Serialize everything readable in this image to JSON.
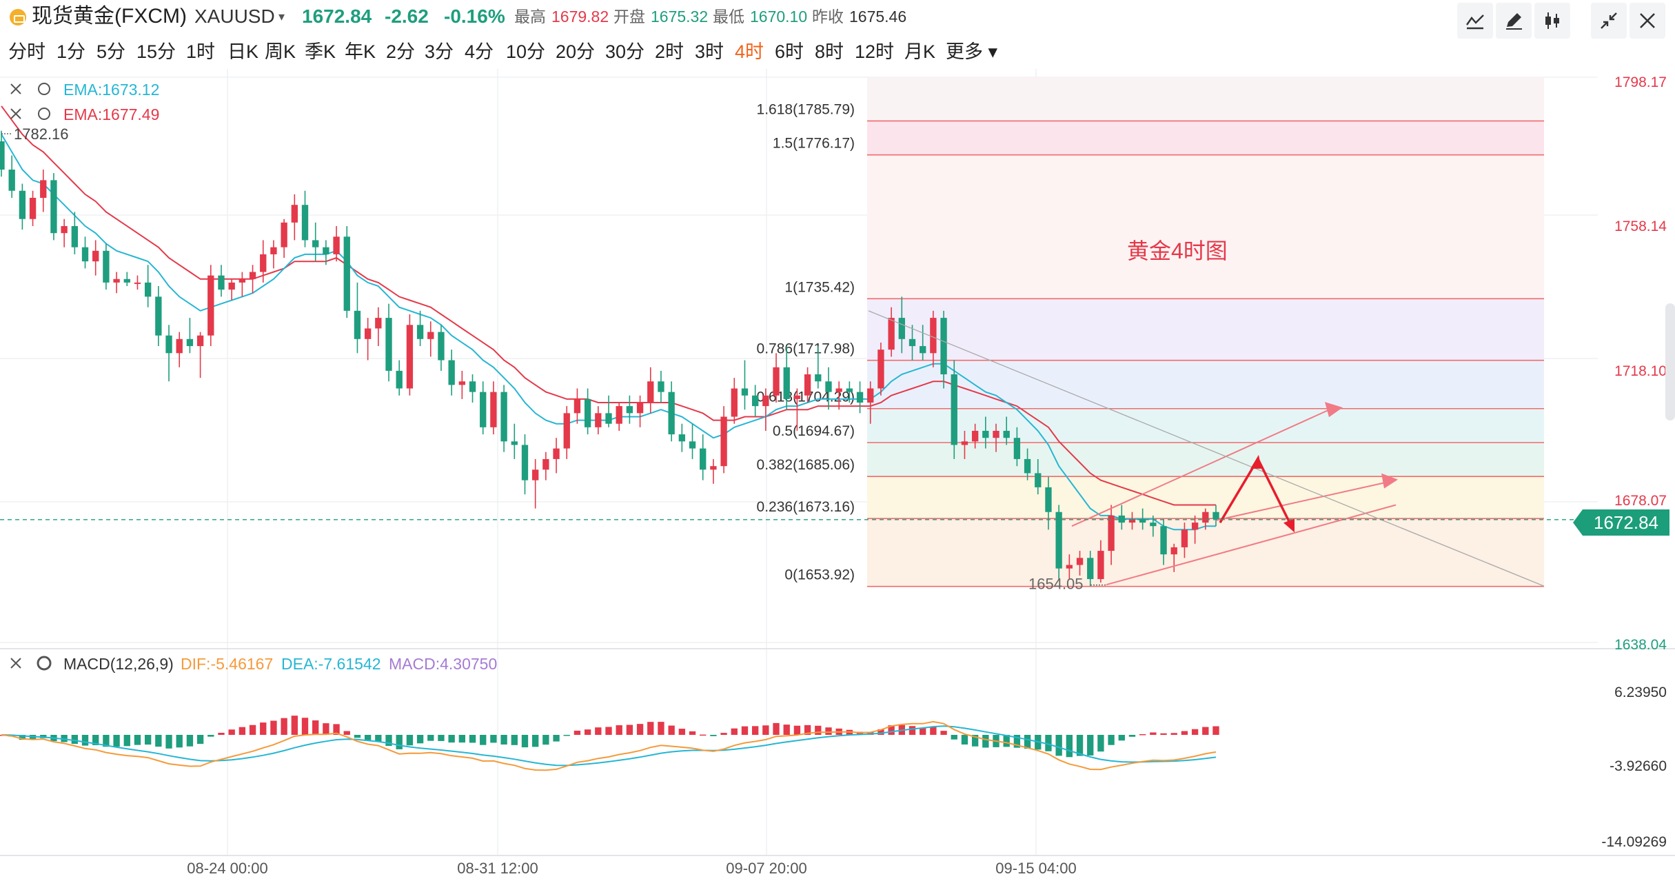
{
  "header": {
    "name": "现货黄金(FXCM)",
    "code": "XAUUSD",
    "price": "1672.84",
    "change": "-2.62",
    "change_pct": "-0.16%",
    "high_label": "最高",
    "high": "1679.82",
    "open_label": "开盘",
    "open": "1675.32",
    "low_label": "最低",
    "low": "1670.10",
    "prev_label": "昨收",
    "prev": "1675.46"
  },
  "periods": [
    "分时",
    "1分",
    "5分",
    "15分",
    "1时",
    "日K",
    "周K",
    "季K",
    "年K",
    "2分",
    "3分",
    "4分",
    "10分",
    "20分",
    "30分",
    "2时",
    "3时",
    "4时",
    "6时",
    "8时",
    "12时",
    "月K",
    "更多"
  ],
  "active_period": "4时",
  "toolbar": [
    "line-tool-icon",
    "pencil-icon",
    "candle-type-icon",
    "collapse-icon",
    "close-icon"
  ],
  "colors": {
    "up": "#e4394a",
    "down": "#1e9e7e",
    "ema1": "#26b6d4",
    "ema2": "#e4394a",
    "dif": "#f59a3a",
    "dea": "#26b6d4",
    "macd": "#a67bd4",
    "accent": "#f2631a"
  },
  "chart_data": {
    "type": "candlestick",
    "title": "黄金4时图",
    "ema_labels": [
      "EMA:1673.12",
      "EMA:1677.49"
    ],
    "current_price": "1672.84",
    "price_axis": {
      "ticks": [
        "1798.17",
        "1758.14",
        "1718.10",
        "1678.07",
        "1638.04"
      ],
      "range": [
        1638.04,
        1798.17
      ]
    },
    "x_axis": {
      "ticks": [
        "08-24 00:00",
        "08-31 12:00",
        "09-07 20:00",
        "09-15 04:00"
      ]
    },
    "high_label": "1782.16",
    "low_label": "1654.05",
    "fib_levels": [
      {
        "label": "1.618(1785.79)",
        "value": 1785.79
      },
      {
        "label": "1.5(1776.17)",
        "value": 1776.17
      },
      {
        "label": "1(1735.42)",
        "value": 1735.42
      },
      {
        "label": "0.786(1717.98)",
        "value": 1717.98
      },
      {
        "label": "0.618(1704.29)",
        "value": 1704.29
      },
      {
        "label": "0.5(1694.67)",
        "value": 1694.67
      },
      {
        "label": "0.382(1685.06)",
        "value": 1685.06
      },
      {
        "label": "0.236(1673.16)",
        "value": 1673.16
      },
      {
        "label": "0(1653.92)",
        "value": 1653.92
      }
    ],
    "candles": [
      [
        1780,
        1783,
        1770,
        1772
      ],
      [
        1772,
        1776,
        1764,
        1766
      ],
      [
        1766,
        1768,
        1755,
        1758
      ],
      [
        1758,
        1766,
        1756,
        1764
      ],
      [
        1764,
        1772,
        1760,
        1769
      ],
      [
        1769,
        1771,
        1752,
        1754
      ],
      [
        1754,
        1758,
        1750,
        1756
      ],
      [
        1756,
        1760,
        1748,
        1750
      ],
      [
        1750,
        1753,
        1744,
        1746
      ],
      [
        1746,
        1752,
        1742,
        1749
      ],
      [
        1749,
        1751,
        1738,
        1740
      ],
      [
        1740,
        1743,
        1737,
        1741
      ],
      [
        1741,
        1743,
        1739,
        1740
      ],
      [
        1740,
        1742,
        1738,
        1740
      ],
      [
        1740,
        1745,
        1733,
        1736
      ],
      [
        1736,
        1739,
        1722,
        1725
      ],
      [
        1725,
        1728,
        1712,
        1720
      ],
      [
        1720,
        1726,
        1716,
        1724
      ],
      [
        1724,
        1730,
        1720,
        1722
      ],
      [
        1722,
        1726,
        1713,
        1725
      ],
      [
        1725,
        1745,
        1722,
        1742
      ],
      [
        1742,
        1745,
        1736,
        1738
      ],
      [
        1738,
        1741,
        1735,
        1740
      ],
      [
        1740,
        1743,
        1736,
        1741
      ],
      [
        1741,
        1745,
        1737,
        1743
      ],
      [
        1743,
        1752,
        1740,
        1748
      ],
      [
        1748,
        1752,
        1744,
        1750
      ],
      [
        1750,
        1758,
        1747,
        1757
      ],
      [
        1757,
        1765,
        1752,
        1762
      ],
      [
        1762,
        1766,
        1750,
        1752
      ],
      [
        1752,
        1757,
        1746,
        1750
      ],
      [
        1750,
        1752,
        1745,
        1748
      ],
      [
        1748,
        1756,
        1746,
        1753
      ],
      [
        1753,
        1756,
        1730,
        1732
      ],
      [
        1732,
        1740,
        1720,
        1724
      ],
      [
        1724,
        1730,
        1718,
        1727
      ],
      [
        1727,
        1733,
        1722,
        1730
      ],
      [
        1730,
        1734,
        1712,
        1715
      ],
      [
        1715,
        1718,
        1708,
        1710
      ],
      [
        1710,
        1731,
        1708,
        1728
      ],
      [
        1728,
        1732,
        1722,
        1724
      ],
      [
        1724,
        1729,
        1719,
        1726
      ],
      [
        1726,
        1728,
        1715,
        1718
      ],
      [
        1718,
        1721,
        1708,
        1711
      ],
      [
        1711,
        1715,
        1707,
        1712
      ],
      [
        1712,
        1714,
        1706,
        1709
      ],
      [
        1709,
        1712,
        1697,
        1699
      ],
      [
        1699,
        1712,
        1697,
        1709
      ],
      [
        1709,
        1711,
        1692,
        1695
      ],
      [
        1695,
        1700,
        1690,
        1694
      ],
      [
        1694,
        1697,
        1680,
        1684
      ],
      [
        1684,
        1690,
        1676,
        1687
      ],
      [
        1687,
        1692,
        1684,
        1690
      ],
      [
        1690,
        1696,
        1686,
        1693
      ],
      [
        1693,
        1705,
        1690,
        1703
      ],
      [
        1703,
        1710,
        1700,
        1707
      ],
      [
        1707,
        1710,
        1697,
        1699
      ],
      [
        1699,
        1705,
        1697,
        1703
      ],
      [
        1703,
        1708,
        1699,
        1700
      ],
      [
        1700,
        1706,
        1698,
        1705
      ],
      [
        1705,
        1708,
        1700,
        1703
      ],
      [
        1703,
        1708,
        1699,
        1706
      ],
      [
        1706,
        1716,
        1703,
        1712
      ],
      [
        1712,
        1715,
        1706,
        1709
      ],
      [
        1709,
        1712,
        1695,
        1697
      ],
      [
        1697,
        1700,
        1692,
        1695
      ],
      [
        1695,
        1700,
        1690,
        1693
      ],
      [
        1693,
        1697,
        1684,
        1687
      ],
      [
        1687,
        1690,
        1683,
        1688
      ],
      [
        1688,
        1705,
        1686,
        1702
      ],
      [
        1702,
        1713,
        1700,
        1710
      ],
      [
        1710,
        1718,
        1704,
        1708
      ],
      [
        1708,
        1711,
        1702,
        1705
      ],
      [
        1705,
        1710,
        1698,
        1708
      ],
      [
        1708,
        1720,
        1706,
        1716
      ],
      [
        1716,
        1722,
        1704,
        1707
      ],
      [
        1707,
        1710,
        1698,
        1708
      ],
      [
        1708,
        1716,
        1706,
        1714
      ],
      [
        1714,
        1722,
        1710,
        1712
      ],
      [
        1712,
        1716,
        1704,
        1709
      ],
      [
        1709,
        1712,
        1704,
        1710
      ],
      [
        1710,
        1712,
        1706,
        1709
      ],
      [
        1709,
        1712,
        1703,
        1706
      ],
      [
        1706,
        1712,
        1700,
        1710
      ],
      [
        1710,
        1723,
        1708,
        1721
      ],
      [
        1721,
        1733,
        1719,
        1730
      ],
      [
        1730,
        1736,
        1720,
        1724
      ],
      [
        1724,
        1728,
        1718,
        1722
      ],
      [
        1722,
        1728,
        1718,
        1720
      ],
      [
        1720,
        1732,
        1716,
        1730
      ],
      [
        1730,
        1732,
        1710,
        1714
      ],
      [
        1714,
        1718,
        1690,
        1694
      ],
      [
        1694,
        1698,
        1690,
        1695
      ],
      [
        1695,
        1700,
        1693,
        1698
      ],
      [
        1698,
        1702,
        1693,
        1696
      ],
      [
        1696,
        1700,
        1692,
        1698
      ],
      [
        1698,
        1702,
        1694,
        1696
      ],
      [
        1696,
        1699,
        1688,
        1690
      ],
      [
        1690,
        1693,
        1684,
        1686
      ],
      [
        1686,
        1690,
        1680,
        1682
      ],
      [
        1682,
        1685,
        1670,
        1675
      ],
      [
        1675,
        1677,
        1656,
        1659
      ],
      [
        1659,
        1663,
        1656,
        1660
      ],
      [
        1660,
        1664,
        1657,
        1662
      ],
      [
        1662,
        1664,
        1654,
        1656
      ],
      [
        1656,
        1667,
        1655,
        1664
      ],
      [
        1664,
        1677,
        1660,
        1674
      ],
      [
        1674,
        1677,
        1670,
        1672
      ],
      [
        1672,
        1675,
        1670,
        1673
      ],
      [
        1673,
        1676,
        1670,
        1672
      ],
      [
        1672,
        1674,
        1668,
        1671
      ],
      [
        1671,
        1673,
        1660,
        1663
      ],
      [
        1663,
        1666,
        1658,
        1665
      ],
      [
        1665,
        1672,
        1662,
        1670
      ],
      [
        1670,
        1674,
        1666,
        1672
      ],
      [
        1672,
        1676,
        1670,
        1675
      ],
      [
        1675,
        1677,
        1671,
        1673
      ]
    ],
    "ema1": [
      1782,
      1777,
      1772,
      1769,
      1768,
      1765,
      1762,
      1759,
      1756,
      1754,
      1751,
      1749,
      1748,
      1747,
      1746,
      1743,
      1739,
      1736,
      1734,
      1732,
      1733,
      1734,
      1735,
      1736,
      1737,
      1739,
      1741,
      1744,
      1747,
      1748,
      1748,
      1748,
      1749,
      1746,
      1742,
      1740,
      1739,
      1736,
      1733,
      1732,
      1731,
      1730,
      1728,
      1725,
      1723,
      1721,
      1718,
      1716,
      1713,
      1710,
      1706,
      1703,
      1701,
      1700,
      1700,
      1701,
      1701,
      1701,
      1701,
      1702,
      1702,
      1702,
      1703,
      1704,
      1703,
      1702,
      1700,
      1698,
      1696,
      1697,
      1699,
      1700,
      1701,
      1702,
      1704,
      1705,
      1705,
      1706,
      1707,
      1707,
      1707,
      1707,
      1707,
      1707,
      1709,
      1712,
      1714,
      1715,
      1716,
      1717,
      1717,
      1715,
      1713,
      1711,
      1709,
      1708,
      1706,
      1704,
      1701,
      1698,
      1694,
      1688,
      1684,
      1680,
      1676,
      1674,
      1674,
      1673,
      1673,
      1673,
      1673,
      1671,
      1670,
      1670,
      1670,
      1671,
      1671
    ],
    "ema2": [
      1790,
      1786,
      1782,
      1779,
      1777,
      1774,
      1771,
      1768,
      1765,
      1763,
      1760,
      1758,
      1756,
      1754,
      1752,
      1750,
      1747,
      1745,
      1743,
      1741,
      1741,
      1741,
      1741,
      1741,
      1741,
      1742,
      1743,
      1744,
      1746,
      1746,
      1746,
      1746,
      1747,
      1745,
      1743,
      1741,
      1740,
      1738,
      1736,
      1735,
      1734,
      1733,
      1731,
      1729,
      1727,
      1725,
      1723,
      1721,
      1718,
      1716,
      1713,
      1711,
      1709,
      1708,
      1707,
      1707,
      1707,
      1706,
      1706,
      1706,
      1706,
      1706,
      1706,
      1706,
      1706,
      1705,
      1704,
      1703,
      1701,
      1701,
      1701,
      1702,
      1702,
      1702,
      1703,
      1704,
      1704,
      1704,
      1705,
      1705,
      1705,
      1705,
      1705,
      1705,
      1706,
      1708,
      1709,
      1710,
      1711,
      1712,
      1712,
      1711,
      1710,
      1709,
      1708,
      1707,
      1706,
      1705,
      1703,
      1701,
      1699,
      1695,
      1692,
      1689,
      1686,
      1684,
      1683,
      1682,
      1681,
      1680,
      1679,
      1678,
      1677,
      1677,
      1677,
      1677,
      1677
    ],
    "trend_lines": [
      {
        "from": [
          1054,
          1656
        ],
        "to": [
          1133,
          1669
        ]
      },
      {
        "from": [
          1054,
          1673
        ],
        "to": [
          1133,
          1686
        ]
      }
    ],
    "macd": {
      "label": "MACD(12,26,9)",
      "dif_label": "DIF:-5.46167",
      "dea_label": "DEA:-7.61542",
      "macd_label": "MACD:4.30750",
      "ticks": [
        "6.23950",
        "-3.92660",
        "-14.09269"
      ],
      "range": [
        -14.09269,
        6.2395
      ]
    }
  }
}
